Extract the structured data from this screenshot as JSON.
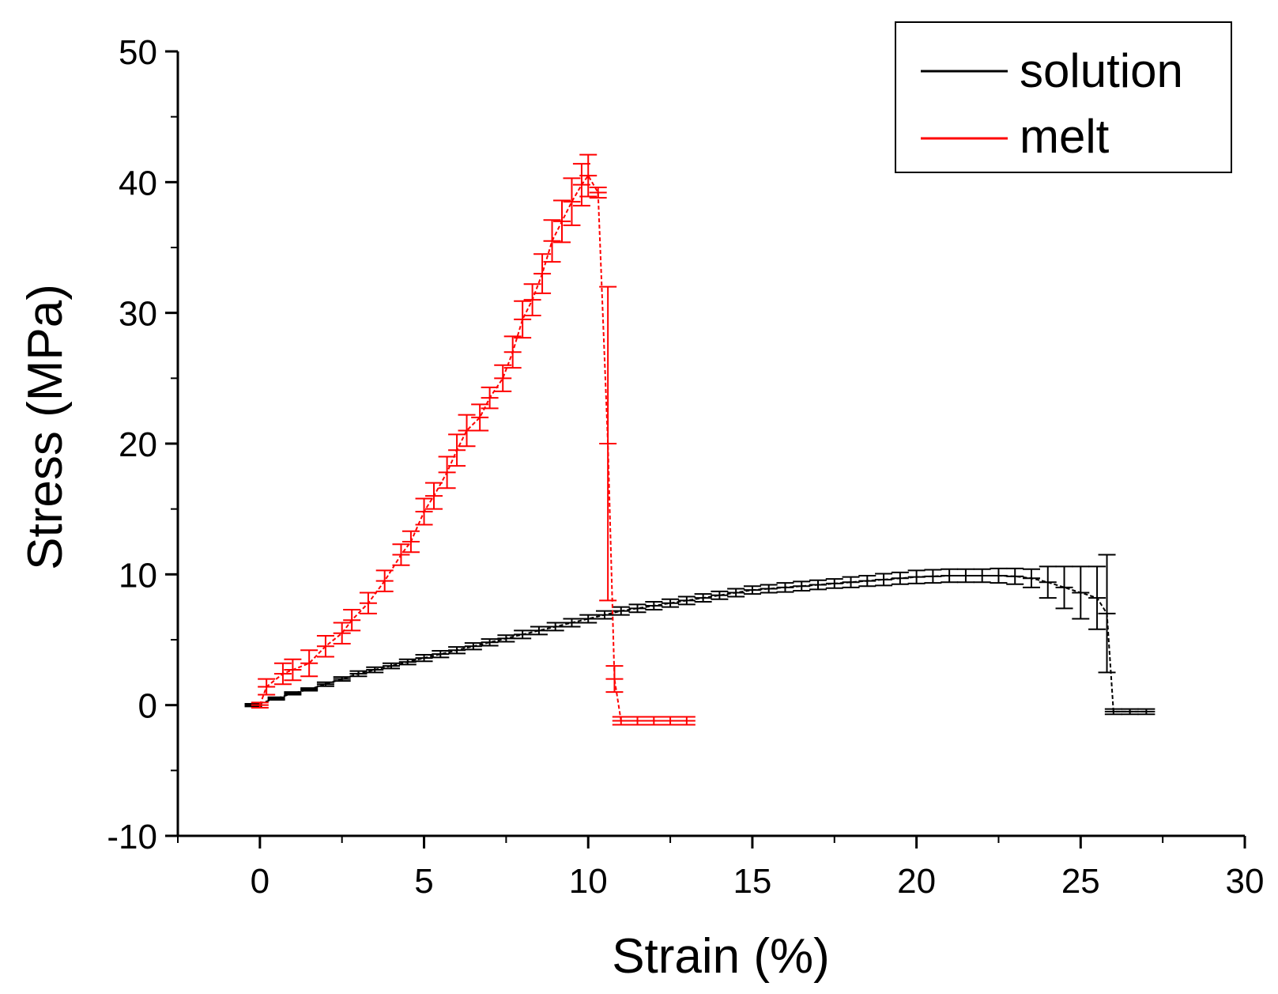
{
  "chart_data": {
    "type": "line",
    "title": "",
    "xlabel": "Strain (%)",
    "ylabel": "Stress (MPa)",
    "xlim": [
      -2.5,
      30
    ],
    "ylim": [
      -10,
      50
    ],
    "xticks": [
      0,
      5,
      10,
      15,
      20,
      25,
      30
    ],
    "yticks": [
      -10,
      0,
      10,
      20,
      30,
      40,
      50
    ],
    "xtick_labels": [
      "0",
      "5",
      "10",
      "15",
      "20",
      "25",
      "30"
    ],
    "ytick_labels": [
      "-10",
      "0",
      "10",
      "20",
      "30",
      "40",
      "50"
    ],
    "grid": false,
    "legend": {
      "position": "top-right",
      "entries": [
        {
          "label": "solution",
          "color": "#000000"
        },
        {
          "label": "melt",
          "color": "#ff0000"
        }
      ]
    },
    "series": [
      {
        "name": "solution",
        "color": "#000000",
        "x": [
          -0.2,
          0.5,
          1,
          1.5,
          2,
          2.5,
          3,
          3.5,
          4,
          4.5,
          5,
          5.5,
          6,
          6.5,
          7,
          7.5,
          8,
          8.5,
          9,
          9.5,
          10,
          10.5,
          11,
          11.5,
          12,
          12.5,
          13,
          13.5,
          14,
          14.5,
          15,
          15.5,
          16,
          16.5,
          17,
          17.5,
          18,
          18.5,
          19,
          19.5,
          20,
          20.5,
          21,
          21.5,
          22,
          22.5,
          23,
          23.5,
          24,
          24.5,
          25,
          25.5,
          25.8,
          26,
          26.5,
          27
        ],
        "y": [
          0,
          0.5,
          0.9,
          1.2,
          1.6,
          2.0,
          2.4,
          2.7,
          3.0,
          3.3,
          3.6,
          3.9,
          4.2,
          4.5,
          4.8,
          5.1,
          5.4,
          5.7,
          6.0,
          6.3,
          6.6,
          6.9,
          7.2,
          7.4,
          7.6,
          7.8,
          8.0,
          8.2,
          8.4,
          8.6,
          8.8,
          8.9,
          9.0,
          9.1,
          9.2,
          9.3,
          9.4,
          9.5,
          9.6,
          9.7,
          9.8,
          9.85,
          9.9,
          9.9,
          9.9,
          9.9,
          9.85,
          9.7,
          9.4,
          9.0,
          8.6,
          8.2,
          7.0,
          -0.5,
          -0.5,
          -0.5
        ],
        "error": [
          0.1,
          0.1,
          0.1,
          0.1,
          0.15,
          0.15,
          0.2,
          0.2,
          0.2,
          0.2,
          0.25,
          0.25,
          0.25,
          0.25,
          0.25,
          0.25,
          0.3,
          0.3,
          0.3,
          0.3,
          0.3,
          0.3,
          0.3,
          0.3,
          0.3,
          0.3,
          0.3,
          0.3,
          0.3,
          0.3,
          0.3,
          0.3,
          0.35,
          0.35,
          0.35,
          0.35,
          0.4,
          0.4,
          0.45,
          0.45,
          0.5,
          0.5,
          0.5,
          0.5,
          0.5,
          0.55,
          0.6,
          0.7,
          1.2,
          1.6,
          2.0,
          2.4,
          4.5,
          0.2,
          0.2,
          0.2
        ]
      },
      {
        "name": "melt",
        "color": "#ff0000",
        "x": [
          0,
          0.2,
          0.7,
          1.0,
          1.5,
          2.0,
          2.5,
          2.8,
          3.3,
          3.8,
          4.3,
          4.6,
          5.0,
          5.3,
          5.7,
          6.0,
          6.3,
          6.7,
          7.0,
          7.4,
          7.7,
          8.0,
          8.3,
          8.6,
          8.9,
          9.2,
          9.5,
          9.8,
          10.0,
          10.3,
          10.6,
          10.8,
          11.0,
          11.5,
          12.0,
          12.5,
          13.0
        ],
        "y": [
          0,
          1.4,
          2.4,
          2.7,
          3.2,
          4.5,
          5.5,
          6.5,
          7.8,
          9.5,
          11.5,
          12.5,
          14.8,
          16.0,
          17.8,
          19.5,
          21.0,
          22.0,
          23.5,
          25.0,
          27.0,
          29.5,
          31.0,
          33.0,
          35.5,
          37.0,
          38.5,
          39.8,
          40.5,
          39.2,
          20.0,
          2.0,
          -1.2,
          -1.2,
          -1.2,
          -1.2,
          -1.2
        ],
        "error": [
          0.2,
          0.6,
          0.8,
          0.8,
          1.0,
          0.8,
          0.8,
          0.8,
          0.8,
          0.8,
          0.8,
          0.8,
          1.0,
          1.0,
          1.2,
          1.2,
          1.2,
          1.0,
          0.8,
          1.0,
          1.2,
          1.4,
          1.2,
          1.5,
          1.6,
          1.6,
          1.8,
          1.6,
          1.6,
          0.4,
          12.0,
          1.0,
          0.3,
          0.3,
          0.3,
          0.3,
          0.3
        ]
      }
    ]
  }
}
